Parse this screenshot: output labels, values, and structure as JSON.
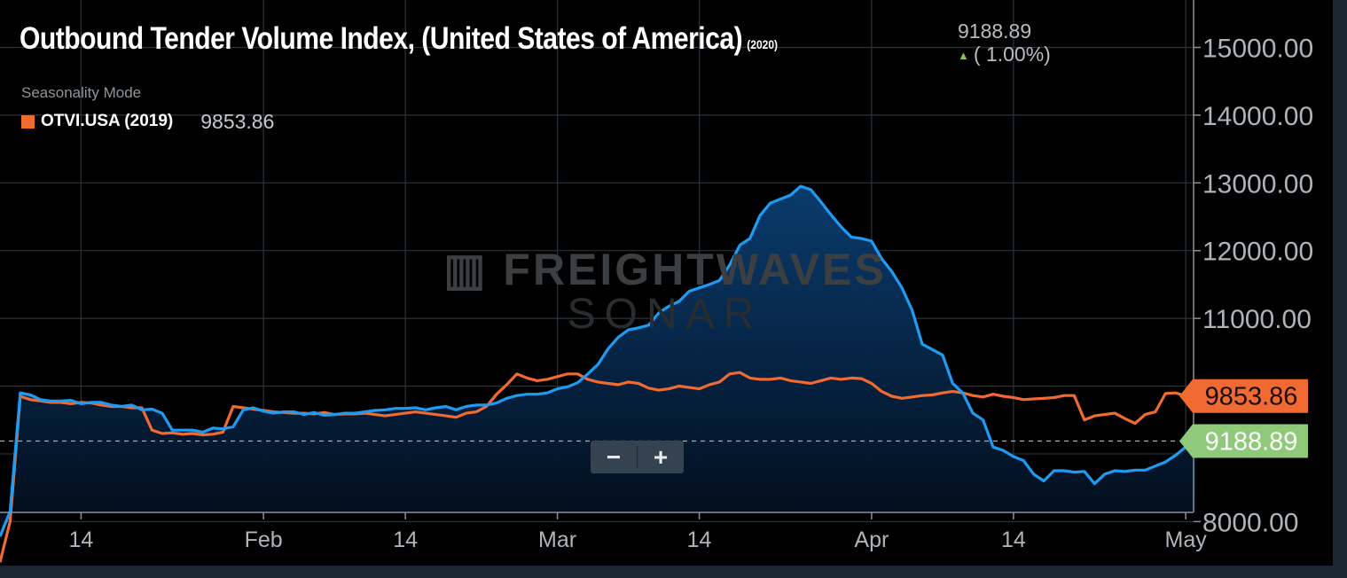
{
  "chart_data": {
    "type": "line",
    "title": "Outbound Tender Volume Index, (United States of America)",
    "title_year": "(2020)",
    "current_value": "9188.89",
    "current_change": "( 1.00%)",
    "mode_label": "Seasonality Mode",
    "xlabel": "",
    "ylabel": "",
    "y_ticks": [
      8000,
      11000,
      12000,
      13000,
      14000,
      15000
    ],
    "y_tick_labels": [
      "8000.00",
      "11000.00",
      "12000.00",
      "13000.00",
      "14000.00",
      "15000.00"
    ],
    "ylim": [
      7180,
      15700
    ],
    "x_tick_labels": [
      "14",
      "Feb",
      "14",
      "Mar",
      "14",
      "Apr",
      "14",
      "May"
    ],
    "x_ticks": [
      14,
      32,
      46,
      61,
      75,
      92,
      106,
      123
    ],
    "xlim": [
      6,
      125
    ],
    "grid": true,
    "reference_line": 9188.89,
    "series": [
      {
        "name": "",
        "year": "2020",
        "color": "#1e9bf2",
        "end_label": "9188.89",
        "x": [
          6,
          7,
          8,
          9,
          10,
          11,
          12,
          13,
          14,
          15,
          16,
          17,
          18,
          19,
          20,
          21,
          22,
          23,
          24,
          25,
          26,
          27,
          28,
          29,
          30,
          31,
          32,
          33,
          34,
          35,
          36,
          37,
          38,
          39,
          40,
          41,
          42,
          43,
          44,
          45,
          46,
          47,
          48,
          49,
          50,
          51,
          52,
          53,
          54,
          55,
          56,
          57,
          58,
          59,
          60,
          61,
          62,
          63,
          64,
          65,
          66,
          67,
          68,
          69,
          70,
          71,
          72,
          73,
          74,
          75,
          76,
          77,
          78,
          79,
          80,
          81,
          82,
          83,
          84,
          85,
          86,
          87,
          88,
          89,
          90,
          91,
          92,
          93,
          94,
          95,
          96,
          97,
          98,
          99,
          100,
          101,
          102,
          103,
          104,
          105,
          106,
          107,
          108,
          109,
          110,
          111,
          112,
          113,
          114,
          115,
          116,
          117,
          118,
          119,
          120,
          121,
          122,
          123,
          124
        ],
        "values": [
          7780,
          8150,
          9900,
          9870,
          9800,
          9780,
          9780,
          9790,
          9740,
          9760,
          9760,
          9720,
          9700,
          9720,
          9650,
          9660,
          9600,
          9350,
          9350,
          9350,
          9320,
          9380,
          9370,
          9400,
          9650,
          9680,
          9630,
          9600,
          9620,
          9620,
          9580,
          9610,
          9570,
          9580,
          9600,
          9600,
          9620,
          9640,
          9650,
          9670,
          9670,
          9680,
          9650,
          9680,
          9700,
          9650,
          9700,
          9720,
          9720,
          9750,
          9820,
          9860,
          9880,
          9880,
          9900,
          9960,
          9990,
          10050,
          10180,
          10320,
          10550,
          10720,
          10830,
          10860,
          10900,
          11080,
          11180,
          11250,
          11400,
          11450,
          11500,
          11560,
          11790,
          12080,
          12180,
          12520,
          12700,
          12760,
          12820,
          12950,
          12900,
          12720,
          12530,
          12350,
          12200,
          12180,
          12140,
          11880,
          11690,
          11450,
          11120,
          10620,
          10540,
          10460,
          10040,
          9900,
          9600,
          9500,
          9100,
          9050,
          8960,
          8900,
          8700,
          8600,
          8750,
          8750,
          8730,
          8740,
          8560,
          8700,
          8750,
          8740,
          8760,
          8760,
          8820,
          8880,
          8980,
          9100,
          9188.89
        ]
      },
      {
        "name": "OTVI.USA (2019)",
        "color": "#f06a32",
        "end_label": "9853.86",
        "legend_value": "9853.86",
        "x": [
          6,
          7,
          8,
          9,
          10,
          11,
          12,
          13,
          14,
          15,
          16,
          17,
          18,
          19,
          20,
          21,
          22,
          23,
          24,
          25,
          26,
          27,
          28,
          29,
          30,
          31,
          32,
          33,
          34,
          35,
          36,
          37,
          38,
          39,
          40,
          41,
          42,
          43,
          44,
          45,
          46,
          47,
          48,
          49,
          50,
          51,
          52,
          53,
          54,
          55,
          56,
          57,
          58,
          59,
          60,
          61,
          62,
          63,
          64,
          65,
          66,
          67,
          68,
          69,
          70,
          71,
          72,
          73,
          74,
          75,
          76,
          77,
          78,
          79,
          80,
          81,
          82,
          83,
          84,
          85,
          86,
          87,
          88,
          89,
          90,
          91,
          92,
          93,
          94,
          95,
          96,
          97,
          98,
          99,
          100,
          101,
          102,
          103,
          104,
          105,
          106,
          107,
          108,
          109,
          110,
          111,
          112,
          113,
          114,
          115,
          116,
          117,
          118,
          119,
          120,
          121,
          122,
          123,
          124
        ],
        "values": [
          7400,
          8000,
          9850,
          9800,
          9780,
          9760,
          9760,
          9740,
          9760,
          9750,
          9720,
          9700,
          9700,
          9680,
          9680,
          9350,
          9300,
          9310,
          9290,
          9300,
          9280,
          9290,
          9320,
          9700,
          9680,
          9660,
          9640,
          9620,
          9610,
          9600,
          9600,
          9590,
          9610,
          9580,
          9590,
          9590,
          9600,
          9580,
          9560,
          9580,
          9600,
          9620,
          9600,
          9580,
          9560,
          9540,
          9600,
          9620,
          9700,
          9880,
          10020,
          10180,
          10120,
          10080,
          10100,
          10140,
          10180,
          10180,
          10100,
          10060,
          10040,
          10020,
          10060,
          10040,
          9970,
          9940,
          9960,
          10000,
          9980,
          9960,
          10020,
          10060,
          10180,
          10200,
          10120,
          10100,
          10100,
          10120,
          10080,
          10060,
          10040,
          10080,
          10120,
          10100,
          10120,
          10110,
          10040,
          9920,
          9850,
          9820,
          9840,
          9860,
          9870,
          9900,
          9920,
          9900,
          9860,
          9840,
          9880,
          9850,
          9830,
          9800,
          9810,
          9820,
          9830,
          9860,
          9860,
          9500,
          9560,
          9580,
          9600,
          9520,
          9450,
          9580,
          9620,
          9890,
          9900,
          9853.86,
          9853.86
        ]
      }
    ]
  }
}
